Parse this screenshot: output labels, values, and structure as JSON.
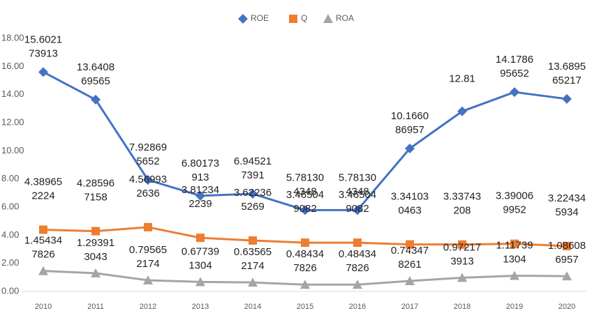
{
  "chart_data": {
    "type": "line",
    "categories": [
      "2010",
      "2011",
      "2012",
      "2013",
      "2014",
      "2015",
      "2016",
      "2017",
      "2018",
      "2019",
      "2020"
    ],
    "series": [
      {
        "name": "ROE",
        "color": "#4472c4",
        "marker": "diamond",
        "values": [
          15.602173913,
          13.640869565,
          7.928695652,
          6.80173913,
          6.945217391,
          5.781304348,
          5.781304348,
          10.166086957,
          12.81,
          14.178695652,
          13.689565217
        ]
      },
      {
        "name": "Q",
        "color": "#ed7d31",
        "marker": "square",
        "values": [
          4.389652224,
          4.285967158,
          4.569932636,
          3.812342239,
          3.622365269,
          3.465049082,
          3.465049082,
          3.341030463,
          3.33743208,
          3.390069952,
          3.224345934
        ]
      },
      {
        "name": "ROA",
        "color": "#a5a5a5",
        "marker": "triangle",
        "values": [
          1.454347826,
          1.293913043,
          0.795652174,
          0.677391304,
          0.635652174,
          0.484347826,
          0.484347826,
          0.743478261,
          0.972173913,
          1.117391304,
          1.086086957
        ]
      }
    ],
    "ylim": [
      0,
      18
    ],
    "yticks": [
      {
        "value": 0,
        "label": "0.00"
      },
      {
        "value": 2,
        "label": "2.00"
      },
      {
        "value": 4,
        "label": "4.00"
      },
      {
        "value": 6,
        "label": "6.00"
      },
      {
        "value": 8,
        "label": "8.00"
      },
      {
        "value": 10,
        "label": "10.00"
      },
      {
        "value": 12,
        "label": "12.00"
      },
      {
        "value": 14,
        "label": "14.00"
      },
      {
        "value": 16,
        "label": "16.00"
      },
      {
        "value": 18,
        "label": "18.00"
      }
    ],
    "legend": "top",
    "grid": false
  }
}
